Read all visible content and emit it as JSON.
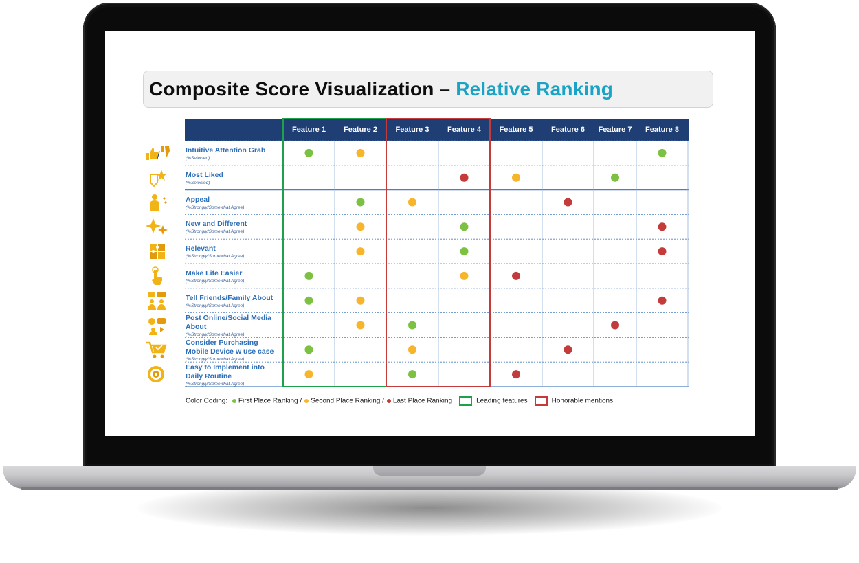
{
  "slide": {
    "title_main": "Composite Score Visualization – ",
    "title_accent": "Relative Ranking"
  },
  "colors": {
    "header": "#1f3e74",
    "first": "#7dc142",
    "second": "#f7b52c",
    "last": "#c43b3b",
    "leading_box": "#1fa04a",
    "honorable_box": "#c43b3b",
    "label": "#2d6fb8",
    "accent": "#1ba3c6"
  },
  "chart_data": {
    "type": "table",
    "columns": [
      "Feature 1",
      "Feature 2",
      "Feature 3",
      "Feature 4",
      "Feature 5",
      "Feature 6",
      "Feature 7",
      "Feature 8"
    ],
    "rows": [
      {
        "label": "Intuitive Attention Grab",
        "sublabel": "(%Selected)",
        "icon": "thumbs-up-down-icon",
        "rankings": [
          "first",
          "second",
          null,
          null,
          null,
          null,
          null,
          "first"
        ]
      },
      {
        "label": "Most Liked",
        "sublabel": "(%Selected)",
        "icon": "heart-star-icon",
        "rankings": [
          null,
          null,
          null,
          "last",
          "second",
          null,
          "first",
          null
        ]
      },
      {
        "label": "Appeal",
        "sublabel": "(%Strongly/Somewhat Agree)",
        "icon": "person-hearts-icon",
        "rankings": [
          null,
          "first",
          "second",
          null,
          null,
          "last",
          null,
          null
        ]
      },
      {
        "label": "New and Different",
        "sublabel": "(%Strongly/Somewhat Agree)",
        "icon": "sparkle-icon",
        "rankings": [
          null,
          "second",
          null,
          "first",
          null,
          null,
          null,
          "last"
        ]
      },
      {
        "label": "Relevant",
        "sublabel": "(%Strongly/Somewhat Agree)",
        "icon": "puzzle-icon",
        "rankings": [
          null,
          "second",
          null,
          "first",
          null,
          null,
          null,
          "last"
        ]
      },
      {
        "label": "Make Life Easier",
        "sublabel": "(%Strongly/Somewhat Agree)",
        "icon": "hand-tap-icon",
        "rankings": [
          "first",
          null,
          null,
          "second",
          "last",
          null,
          null,
          null
        ]
      },
      {
        "label": "Tell Friends/Family About",
        "sublabel": "(%Strongly/Somewhat Agree)",
        "icon": "people-talking-icon",
        "rankings": [
          "first",
          "second",
          null,
          null,
          null,
          null,
          null,
          "last"
        ]
      },
      {
        "label": "Post Online/Social Media About",
        "sublabel": "(%Strongly/Somewhat Agree)",
        "icon": "social-media-icon",
        "rankings": [
          null,
          "second",
          "first",
          null,
          null,
          null,
          "last",
          null
        ]
      },
      {
        "label": "Consider Purchasing Mobile Device w use case",
        "sublabel": "(%Strongly/Somewhat Agree)",
        "icon": "shopping-cart-icon",
        "rankings": [
          "first",
          null,
          "second",
          null,
          null,
          "last",
          null,
          null
        ]
      },
      {
        "label": "Easy to Implement into Daily Routine",
        "sublabel": "(%Strongly/Somewhat Agree)",
        "icon": "head-gears-icon",
        "rankings": [
          "second",
          null,
          "first",
          null,
          "last",
          null,
          null,
          null
        ]
      }
    ],
    "highlight_groups": [
      {
        "name": "Leading features",
        "columns": [
          "Feature 1",
          "Feature 2"
        ],
        "color": "#1fa04a"
      },
      {
        "name": "Honorable mentions",
        "columns": [
          "Feature 3",
          "Feature 4"
        ],
        "color": "#c43b3b"
      }
    ]
  },
  "legend": {
    "prefix": "Color Coding: ",
    "first": "First Place Ranking /",
    "second": "Second Place Ranking /",
    "last": "Last Place Ranking",
    "leading": "Leading features",
    "honorable": "Honorable mentions"
  }
}
